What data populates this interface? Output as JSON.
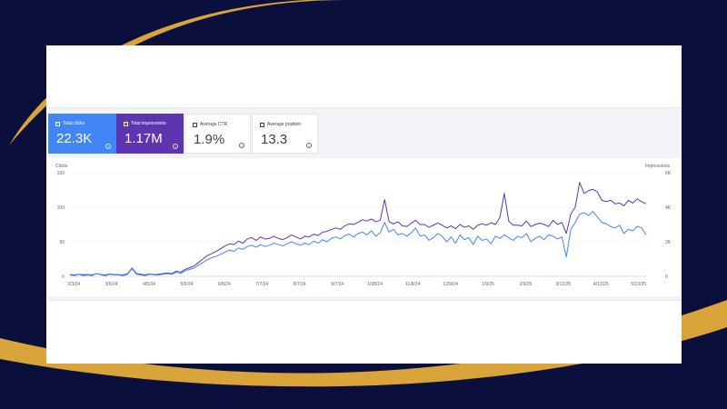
{
  "colors": {
    "background": "#0a0f3c",
    "accent_gold": "#d9a43a",
    "clicks": "#4285f4",
    "impressions": "#5e35b1"
  },
  "metrics": [
    {
      "label": "Total clicks",
      "value": "22.3K",
      "selected": true,
      "color": "#4285f4"
    },
    {
      "label": "Total impressions",
      "value": "1.17M",
      "selected": true,
      "color": "#5e35b1"
    },
    {
      "label": "Average CTR",
      "value": "1.9%",
      "selected": false
    },
    {
      "label": "Average position",
      "value": "13.3",
      "selected": false
    }
  ],
  "chart_data": {
    "type": "line",
    "grid": true,
    "left_axis": {
      "title": "Clicks",
      "ticks": [
        "150",
        "100",
        "50",
        "0"
      ],
      "range": [
        0,
        150
      ]
    },
    "right_axis": {
      "title": "Impressions",
      "ticks": [
        "6K",
        "4K",
        "2K",
        "0"
      ],
      "range": [
        0,
        6000
      ]
    },
    "x_ticks": [
      "2/3/24",
      "3/5/24",
      "4/5/24",
      "5/6/24",
      "6/5/24",
      "7/7/24",
      "8/7/24",
      "9/7/24",
      "10/8/24",
      "11/8/24",
      "12/9/24",
      "1/9/25",
      "2/9/25",
      "3/12/25",
      "4/12/25",
      "5/13/25"
    ],
    "series": [
      {
        "name": "Clicks",
        "axis": "left",
        "color": "#4285f4",
        "values": [
          2,
          1,
          3,
          1,
          2,
          1,
          4,
          2,
          1,
          3,
          2,
          2,
          1,
          3,
          11,
          3,
          2,
          1,
          3,
          2,
          2,
          3,
          4,
          3,
          6,
          4,
          8,
          10,
          12,
          16,
          20,
          24,
          27,
          29,
          32,
          35,
          38,
          36,
          41,
          39,
          43,
          45,
          42,
          46,
          43,
          45,
          48,
          46,
          44,
          47,
          50,
          47,
          45,
          48,
          46,
          51,
          48,
          53,
          50,
          55,
          57,
          54,
          59,
          61,
          57,
          62,
          64,
          60,
          66,
          58,
          63,
          78,
          64,
          68,
          60,
          62,
          58,
          63,
          70,
          58,
          60,
          52,
          56,
          62,
          58,
          50,
          57,
          48,
          60,
          53,
          56,
          46,
          58,
          52,
          54,
          47,
          58,
          55,
          60,
          56,
          52,
          58,
          56,
          62,
          50,
          55,
          58,
          53,
          60,
          58,
          54,
          57,
          28,
          68,
          78,
          90,
          92,
          88,
          94,
          86,
          78,
          76,
          72,
          70,
          74,
          62,
          68,
          66,
          72,
          70,
          60
        ]
      },
      {
        "name": "Impressions",
        "axis": "right",
        "color": "#5e35b1",
        "values": [
          100,
          80,
          120,
          90,
          100,
          80,
          160,
          100,
          80,
          140,
          100,
          100,
          80,
          150,
          480,
          160,
          120,
          80,
          140,
          100,
          120,
          160,
          200,
          160,
          300,
          240,
          400,
          500,
          600,
          800,
          1000,
          1200,
          1320,
          1440,
          1600,
          1760,
          1880,
          1840,
          2040,
          1920,
          2160,
          2240,
          2080,
          2280,
          2160,
          2200,
          2320,
          2200,
          2120,
          2240,
          2400,
          2280,
          2160,
          2320,
          2280,
          2440,
          2360,
          2560,
          2600,
          2720,
          2800,
          2720,
          2920,
          3040,
          3000,
          3120,
          3280,
          3200,
          3320,
          3160,
          3240,
          4440,
          3160,
          3040,
          3160,
          2920,
          2880,
          3080,
          3240,
          3000,
          3000,
          2840,
          2960,
          3080,
          2960,
          2800,
          2920,
          2760,
          3000,
          2840,
          2920,
          2720,
          2960,
          3040,
          2960,
          3100,
          3000,
          3400,
          4800,
          3200,
          2960,
          2960,
          2920,
          3200,
          2880,
          3000,
          3080,
          3000,
          2880,
          3240,
          3000,
          3120,
          2480,
          3600,
          4000,
          5440,
          4800,
          4960,
          5040,
          4880,
          4400,
          4320,
          4400,
          4200,
          4240,
          4080,
          4400,
          4240,
          4480,
          4320,
          4200
        ]
      }
    ]
  }
}
